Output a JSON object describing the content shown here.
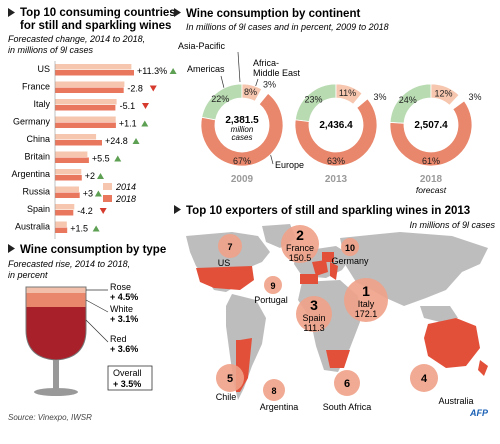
{
  "top10": {
    "title_line1": "Top 10 consuming countries",
    "title_line2": "for still and sparkling wines",
    "subtitle_line1": "Forecasted change, 2014 to 2018,",
    "subtitle_line2": "in millions of 9l cases",
    "legend_2014": "2014",
    "legend_2018": "2018"
  },
  "continents": {
    "title": "Wine consumption by continent",
    "subtitle": "In millions of 9l cases and in percent, 2009 to 2018",
    "label_asia": "Asia-Pacific",
    "label_americas": "Americas",
    "label_africa_line1": "Africa-",
    "label_africa_line2": "Middle East",
    "label_europe": "Europe"
  },
  "type": {
    "title": "Wine consumption by type",
    "subtitle_line1": "Forecasted rise, 2014 to 2018,",
    "subtitle_line2": "in percent",
    "overall_label": "Overall",
    "overall_value": "+ 3.5%"
  },
  "exporters": {
    "title": "Top 10 exporters of still and sparkling wines in 2013",
    "subtitle": "In millions of 9l cases"
  },
  "footer": {
    "source": "Source: Vinexpo, IWSR",
    "logo": "AFP"
  },
  "colors": {
    "bar2014": "#f6c6ae",
    "bar2018": "#e8775d",
    "up": "#5ea053",
    "down": "#d63a2c",
    "europe": "#e9876c",
    "americas": "#b9dbb2",
    "asia": "#f6c6ae",
    "africa": "#ffffff",
    "map_land": "#bdbdbd",
    "map_highlight": "#e2503a",
    "bubble": "#f0a187",
    "bubble_dark": "#e2826a",
    "rose": "#f2c0aa",
    "white_wine": "#e9876c",
    "red": "#a8202a"
  },
  "chart_data": [
    {
      "type": "bar",
      "title": "Top 10 consuming countries for still and sparkling wines",
      "subtitle": "Forecasted change, 2014 to 2018, in millions of 9l cases",
      "categories": [
        "US",
        "France",
        "Italy",
        "Germany",
        "China",
        "Britain",
        "Argentina",
        "Russia",
        "Spain",
        "Australia"
      ],
      "series": [
        {
          "name": "2014",
          "values": [
            325,
            295,
            262,
            258,
            175,
            138,
            112,
            102,
            82,
            50
          ]
        },
        {
          "name": "2018",
          "values": [
            336,
            292,
            257,
            259,
            200,
            144,
            114,
            105,
            78,
            52
          ]
        }
      ],
      "change_labels": [
        "+11.3%",
        "-2.8",
        "-5.1",
        "+1.1",
        "+24.8",
        "+5.5",
        "+2",
        "+3",
        "-4.2",
        "+1.5"
      ],
      "change_direction": [
        "up",
        "down",
        "down",
        "up",
        "up",
        "up",
        "up",
        "up",
        "down",
        "up"
      ],
      "xlim": [
        0,
        350
      ],
      "legend": "lower-right"
    },
    {
      "type": "pie",
      "title": "Wine consumption by continent",
      "subtitle": "In millions of 9l cases and in percent, 2009 to 2018",
      "charts": [
        {
          "year": "2009",
          "total": "2,381.5",
          "total_line2": "million",
          "total_line3": "cases",
          "note": "",
          "slices": [
            {
              "name": "Europe",
              "value": 67,
              "label": "67%"
            },
            {
              "name": "Americas",
              "value": 22,
              "label": "22%"
            },
            {
              "name": "Asia-Pacific",
              "value": 8,
              "label": "8%"
            },
            {
              "name": "Africa-Middle East",
              "value": 3,
              "label": "3%"
            }
          ]
        },
        {
          "year": "2013",
          "total": "2,436.4",
          "total_line2": "",
          "total_line3": "",
          "note": "",
          "slices": [
            {
              "name": "Europe",
              "value": 63,
              "label": "63%"
            },
            {
              "name": "Americas",
              "value": 23,
              "label": "23%"
            },
            {
              "name": "Asia-Pacific",
              "value": 11,
              "label": "11%"
            },
            {
              "name": "Africa-Middle East",
              "value": 3,
              "label": "3%"
            }
          ]
        },
        {
          "year": "2018",
          "total": "2,507.4",
          "total_line2": "",
          "total_line3": "",
          "note": "forecast",
          "slices": [
            {
              "name": "Europe",
              "value": 61,
              "label": "61%"
            },
            {
              "name": "Americas",
              "value": 24,
              "label": "24%"
            },
            {
              "name": "Asia-Pacific",
              "value": 12,
              "label": "12%"
            },
            {
              "name": "Africa-Middle East",
              "value": 3,
              "label": "3%"
            }
          ]
        }
      ]
    },
    {
      "type": "bar",
      "title": "Wine consumption by type",
      "subtitle": "Forecasted rise, 2014 to 2018, in percent",
      "categories": [
        "Rose",
        "White",
        "Red"
      ],
      "values": [
        4.5,
        3.1,
        3.6
      ],
      "labels": [
        "+ 4.5%",
        "+ 3.1%",
        "+ 3.6%"
      ],
      "overall": "+ 3.5%"
    },
    {
      "type": "scatter",
      "title": "Top 10 exporters of still and sparkling wines in 2013",
      "subtitle": "In millions of 9l cases",
      "points": [
        {
          "rank": "1",
          "country": "Italy",
          "value": "172.1"
        },
        {
          "rank": "2",
          "country": "France",
          "value": "150.5"
        },
        {
          "rank": "3",
          "country": "Spain",
          "value": "111.3"
        },
        {
          "rank": "4",
          "country": "Australia",
          "value": ""
        },
        {
          "rank": "5",
          "country": "Chile",
          "value": ""
        },
        {
          "rank": "6",
          "country": "South Africa",
          "value": ""
        },
        {
          "rank": "7",
          "country": "US",
          "value": ""
        },
        {
          "rank": "8",
          "country": "Argentina",
          "value": ""
        },
        {
          "rank": "9",
          "country": "Portugal",
          "value": ""
        },
        {
          "rank": "10",
          "country": "Germany",
          "value": ""
        }
      ]
    }
  ]
}
